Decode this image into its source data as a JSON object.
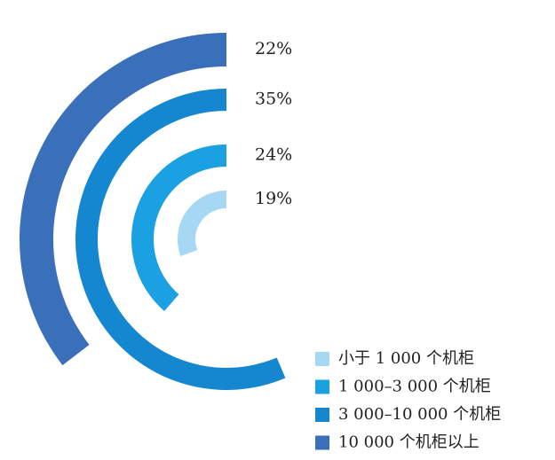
{
  "chart_data": {
    "type": "radial-bar",
    "categories": [
      "小于 1 000 个机柜",
      "1 000–3 000 个机柜",
      "3 000–10 000 个机柜",
      "10 000 个机柜以上"
    ],
    "values": [
      19,
      24,
      35,
      22
    ],
    "value_labels": [
      "19%",
      "24%",
      "35%",
      "22%"
    ],
    "colors": [
      "#a6d8f3",
      "#1ba0e2",
      "#1487d0",
      "#3a6fb9"
    ],
    "legend": "bottom-right"
  }
}
